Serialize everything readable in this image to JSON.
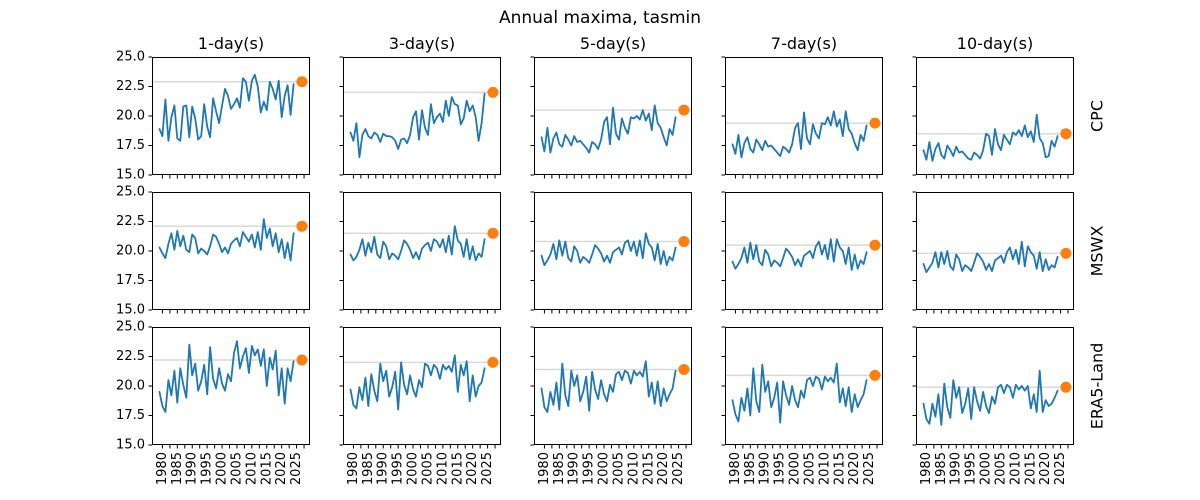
{
  "figure": {
    "title": "Annual maxima, tasmin"
  },
  "columns": [
    "1-day(s)",
    "3-day(s)",
    "5-day(s)",
    "7-day(s)",
    "10-day(s)"
  ],
  "rows": [
    "CPC",
    "MSWX",
    "ERA5-Land"
  ],
  "colors": {
    "line": "#1f77b4",
    "highlight_dot": "#ff7f0e",
    "refline": "#d9d9d9",
    "spine": "#000000"
  },
  "chart_data": {
    "type": "line",
    "title": "Annual maxima, tasmin",
    "xlabel": "",
    "ylabel": "",
    "grid": false,
    "legend": "none",
    "ylim": [
      15.0,
      25.0
    ],
    "xlim": [
      1976.5,
      2029.5
    ],
    "y_tick_values": [
      15.0,
      17.5,
      20.0,
      22.5,
      25.0
    ],
    "y_tick_labels": [
      "15.0",
      "17.5",
      "20.0",
      "22.5",
      "25.0"
    ],
    "x_tick_values": [
      1980,
      1985,
      1990,
      1995,
      2000,
      2005,
      2010,
      2015,
      2020,
      2025
    ],
    "x_tick_labels": [
      "1980",
      "1985",
      "1990",
      "1995",
      "2000",
      "2005",
      "2010",
      "2015",
      "2020",
      "2025"
    ],
    "x_minor_tick_start": 1980,
    "x_minor_tick_step": 2.5,
    "x_minor_tick_end": 2027.5,
    "x_years_start": 1979,
    "x_years_end": 2024,
    "highlight_x": 2026.8,
    "panels": [
      {
        "dataset": "CPC",
        "window": "1-day(s)",
        "highlight_value": 22.9,
        "refline_value": 22.9,
        "values": [
          18.9,
          18.3,
          21.4,
          17.9,
          19.9,
          20.9,
          18.1,
          17.9,
          20.8,
          20.9,
          18.2,
          20.8,
          19.8,
          18.0,
          18.3,
          21.0,
          19.1,
          18.2,
          21.5,
          20.4,
          19.4,
          20.9,
          22.3,
          21.7,
          20.6,
          21.0,
          21.5,
          20.7,
          23.2,
          22.9,
          21.3,
          23.0,
          23.5,
          22.5,
          20.3,
          21.2,
          20.5,
          22.9,
          22.3,
          21.4,
          23.0,
          19.9,
          21.7,
          22.6,
          20.1,
          22.7
        ]
      },
      {
        "dataset": "CPC",
        "window": "3-day(s)",
        "highlight_value": 22.0,
        "refline_value": 22.0,
        "values": [
          18.6,
          17.9,
          19.4,
          16.5,
          18.4,
          18.9,
          18.3,
          18.1,
          18.6,
          18.4,
          17.8,
          18.5,
          18.3,
          18.3,
          18.2,
          17.9,
          17.2,
          18.0,
          18.1,
          17.7,
          18.4,
          19.9,
          20.4,
          18.0,
          20.5,
          19.0,
          18.4,
          21.0,
          19.4,
          19.9,
          20.2,
          19.5,
          21.3,
          20.0,
          21.6,
          21.0,
          20.9,
          19.3,
          19.8,
          21.3,
          20.4,
          20.9,
          19.9,
          17.9,
          19.4,
          21.9
        ]
      },
      {
        "dataset": "CPC",
        "window": "5-day(s)",
        "highlight_value": 20.5,
        "refline_value": 20.5,
        "values": [
          18.2,
          17.0,
          19.0,
          16.9,
          18.1,
          18.6,
          17.6,
          17.4,
          18.4,
          18.0,
          17.5,
          18.3,
          17.8,
          17.9,
          17.6,
          17.3,
          16.9,
          17.8,
          17.6,
          17.2,
          18.0,
          19.5,
          19.9,
          17.6,
          20.7,
          18.5,
          18.0,
          19.8,
          19.0,
          18.5,
          19.9,
          19.8,
          20.0,
          19.7,
          20.5,
          19.6,
          20.2,
          18.8,
          20.9,
          19.4,
          19.0,
          18.2,
          17.5,
          18.9,
          18.4,
          19.9
        ]
      },
      {
        "dataset": "CPC",
        "window": "7-day(s)",
        "highlight_value": 19.4,
        "refline_value": 19.4,
        "values": [
          17.6,
          16.8,
          18.4,
          16.5,
          17.7,
          18.2,
          17.2,
          16.9,
          18.0,
          17.6,
          17.1,
          17.9,
          17.4,
          17.5,
          17.2,
          16.9,
          16.6,
          17.4,
          17.2,
          16.9,
          17.6,
          19.0,
          19.4,
          17.2,
          20.3,
          18.1,
          17.6,
          19.3,
          18.5,
          18.1,
          19.4,
          19.3,
          19.9,
          19.2,
          20.4,
          19.1,
          19.7,
          18.3,
          20.4,
          18.9,
          18.5,
          17.7,
          17.1,
          18.4,
          17.9,
          19.2
        ]
      },
      {
        "dataset": "CPC",
        "window": "10-day(s)",
        "highlight_value": 18.5,
        "refline_value": 18.5,
        "values": [
          17.1,
          16.3,
          17.8,
          16.2,
          17.2,
          17.7,
          16.7,
          16.4,
          17.5,
          17.1,
          16.6,
          17.4,
          16.9,
          17.0,
          16.7,
          16.4,
          16.3,
          16.9,
          16.7,
          16.4,
          17.1,
          18.5,
          18.3,
          16.7,
          18.9,
          17.6,
          17.1,
          18.4,
          18.0,
          17.6,
          18.6,
          18.4,
          18.8,
          18.3,
          19.2,
          18.2,
          18.7,
          17.8,
          20.1,
          18.1,
          17.7,
          16.5,
          16.6,
          17.9,
          17.4,
          18.3
        ]
      },
      {
        "dataset": "MSWX",
        "window": "1-day(s)",
        "highlight_value": 22.1,
        "refline_value": 22.1,
        "values": [
          20.3,
          19.8,
          19.4,
          20.6,
          21.5,
          20.1,
          21.7,
          20.4,
          21.3,
          20.1,
          19.9,
          21.4,
          21.1,
          19.8,
          20.2,
          20.0,
          19.7,
          20.4,
          21.4,
          21.2,
          20.6,
          19.9,
          20.3,
          19.8,
          20.6,
          20.9,
          21.1,
          20.4,
          21.6,
          21.2,
          20.8,
          21.4,
          20.3,
          21.6,
          20.1,
          22.7,
          21.1,
          21.9,
          20.4,
          21.5,
          19.9,
          21.0,
          19.4,
          20.7,
          19.2,
          21.5
        ]
      },
      {
        "dataset": "MSWX",
        "window": "3-day(s)",
        "highlight_value": 21.5,
        "refline_value": 21.5,
        "values": [
          19.7,
          19.2,
          19.5,
          20.1,
          21.0,
          19.6,
          20.7,
          19.9,
          21.2,
          19.7,
          19.4,
          20.8,
          20.4,
          19.3,
          19.8,
          19.6,
          19.3,
          20.0,
          20.9,
          20.6,
          20.1,
          19.4,
          19.9,
          19.3,
          20.2,
          20.5,
          20.7,
          20.0,
          21.0,
          20.8,
          20.3,
          21.0,
          19.9,
          21.3,
          19.7,
          22.1,
          20.9,
          20.6,
          19.5,
          21.0,
          19.3,
          20.4,
          19.2,
          19.8,
          19.5,
          21.0
        ]
      },
      {
        "dataset": "MSWX",
        "window": "5-day(s)",
        "highlight_value": 20.8,
        "refline_value": 20.8,
        "values": [
          19.6,
          18.8,
          19.2,
          19.7,
          20.6,
          19.3,
          20.9,
          19.6,
          20.8,
          19.4,
          19.1,
          20.4,
          20.0,
          19.0,
          19.5,
          19.3,
          19.0,
          19.7,
          20.5,
          20.2,
          19.8,
          19.1,
          19.6,
          19.0,
          19.9,
          20.1,
          20.3,
          19.7,
          20.7,
          20.9,
          20.0,
          20.8,
          19.6,
          20.9,
          19.4,
          21.5,
          20.6,
          20.3,
          19.2,
          20.6,
          18.9,
          20.0,
          18.8,
          19.5,
          19.2,
          20.3
        ]
      },
      {
        "dataset": "MSWX",
        "window": "7-day(s)",
        "highlight_value": 20.5,
        "refline_value": 20.5,
        "values": [
          19.1,
          18.5,
          18.9,
          19.4,
          20.3,
          19.0,
          20.7,
          19.3,
          20.5,
          19.1,
          18.8,
          20.1,
          19.7,
          18.7,
          19.2,
          19.0,
          18.7,
          19.4,
          20.2,
          19.9,
          19.5,
          18.8,
          19.3,
          18.7,
          19.6,
          19.8,
          20.0,
          19.4,
          20.4,
          20.8,
          19.7,
          20.5,
          19.3,
          21.0,
          19.1,
          21.0,
          20.3,
          20.0,
          18.9,
          20.3,
          18.4,
          19.7,
          18.5,
          19.2,
          18.9,
          19.9
        ]
      },
      {
        "dataset": "MSWX",
        "window": "10-day(s)",
        "highlight_value": 19.8,
        "refline_value": 19.8,
        "values": [
          18.9,
          18.2,
          18.6,
          19.0,
          19.9,
          18.6,
          19.9,
          18.9,
          20.0,
          18.7,
          18.4,
          19.7,
          19.3,
          18.3,
          18.8,
          18.6,
          18.3,
          19.0,
          19.8,
          19.5,
          19.1,
          18.4,
          18.9,
          18.3,
          19.2,
          19.4,
          19.6,
          19.0,
          19.9,
          20.3,
          19.3,
          20.1,
          18.9,
          20.8,
          18.7,
          20.4,
          19.9,
          19.6,
          18.5,
          19.9,
          18.3,
          19.3,
          18.4,
          18.8,
          18.6,
          19.5
        ]
      },
      {
        "dataset": "ERA5-Land",
        "window": "1-day(s)",
        "highlight_value": 22.2,
        "refline_value": 22.2,
        "values": [
          19.5,
          18.3,
          17.8,
          20.5,
          19.2,
          21.3,
          18.6,
          21.5,
          20.1,
          19.0,
          23.5,
          20.9,
          21.9,
          19.6,
          20.4,
          21.8,
          19.3,
          23.3,
          20.6,
          19.8,
          21.5,
          20.2,
          19.6,
          21.0,
          20.4,
          22.8,
          23.8,
          21.5,
          22.5,
          23.2,
          21.1,
          23.4,
          22.6,
          23.1,
          21.7,
          23.1,
          20.0,
          22.4,
          21.4,
          23.0,
          19.2,
          21.5,
          18.5,
          21.5,
          20.4,
          22.1
        ]
      },
      {
        "dataset": "ERA5-Land",
        "window": "3-day(s)",
        "highlight_value": 22.0,
        "refline_value": 22.0,
        "values": [
          19.7,
          18.4,
          18.1,
          19.9,
          18.8,
          20.7,
          18.3,
          21.0,
          19.6,
          18.7,
          21.9,
          20.4,
          21.3,
          19.1,
          19.9,
          21.2,
          18.0,
          22.0,
          20.1,
          19.3,
          20.9,
          19.7,
          19.1,
          20.5,
          19.9,
          21.9,
          21.7,
          20.9,
          21.8,
          21.5,
          20.6,
          21.8,
          21.4,
          21.7,
          21.2,
          22.6,
          19.5,
          21.8,
          20.9,
          22.1,
          18.7,
          20.9,
          19.1,
          20.0,
          20.3,
          21.5
        ]
      },
      {
        "dataset": "ERA5-Land",
        "window": "5-day(s)",
        "highlight_value": 21.4,
        "refline_value": 21.4,
        "values": [
          19.8,
          18.2,
          17.8,
          19.5,
          18.4,
          20.3,
          18.0,
          21.9,
          19.2,
          18.3,
          21.3,
          20.0,
          20.9,
          18.7,
          19.5,
          20.8,
          17.9,
          21.2,
          19.7,
          18.9,
          20.5,
          19.3,
          18.7,
          20.1,
          19.5,
          21.0,
          21.2,
          20.5,
          21.3,
          21.1,
          20.2,
          21.3,
          20.9,
          21.2,
          20.8,
          22.1,
          19.1,
          20.3,
          18.5,
          20.4,
          18.3,
          19.8,
          18.7,
          19.3,
          19.8,
          21.3
        ]
      },
      {
        "dataset": "ERA5-Land",
        "window": "7-day(s)",
        "highlight_value": 20.9,
        "refline_value": 20.9,
        "values": [
          18.8,
          17.6,
          17.0,
          19.0,
          17.9,
          19.8,
          17.5,
          21.5,
          18.7,
          17.8,
          21.8,
          19.5,
          20.4,
          18.2,
          19.0,
          20.3,
          16.9,
          20.4,
          19.2,
          18.4,
          20.0,
          18.8,
          18.2,
          19.6,
          19.0,
          20.5,
          20.7,
          20.0,
          20.8,
          20.6,
          19.7,
          20.8,
          20.4,
          20.7,
          20.3,
          21.9,
          18.6,
          19.8,
          18.3,
          19.9,
          17.8,
          19.3,
          18.2,
          18.8,
          19.3,
          20.5
        ]
      },
      {
        "dataset": "ERA5-Land",
        "window": "10-day(s)",
        "highlight_value": 19.9,
        "refline_value": 19.9,
        "values": [
          18.5,
          17.2,
          16.8,
          18.5,
          17.4,
          19.3,
          16.7,
          20.2,
          18.2,
          17.3,
          20.5,
          19.0,
          19.9,
          17.7,
          18.5,
          19.8,
          17.2,
          19.9,
          18.7,
          17.9,
          19.5,
          18.3,
          17.7,
          19.1,
          18.5,
          19.9,
          20.1,
          19.4,
          20.1,
          19.9,
          19.0,
          20.1,
          19.7,
          20.0,
          19.6,
          20.0,
          18.1,
          19.3,
          17.8,
          21.3,
          17.8,
          18.8,
          18.3,
          18.5,
          19.0,
          19.6
        ]
      }
    ]
  }
}
